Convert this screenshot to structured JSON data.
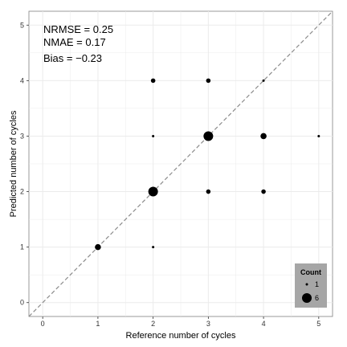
{
  "chart_data": {
    "type": "scatter",
    "xlabel": "Reference number of cycles",
    "ylabel": "Predicted number of cycles",
    "xlim": [
      -0.25,
      5.25
    ],
    "ylim": [
      -0.25,
      5.25
    ],
    "xticks": [
      0,
      1,
      2,
      3,
      4,
      5
    ],
    "yticks": [
      0,
      1,
      2,
      3,
      4,
      5
    ],
    "grid": true,
    "reference_line": "y = x (dashed)",
    "annotations": [
      "NRMSE = 0.25",
      "NMAE = 0.17",
      "Bias = −0.23"
    ],
    "points": [
      {
        "x": 1,
        "y": 1,
        "count": 3
      },
      {
        "x": 2,
        "y": 1,
        "count": 1
      },
      {
        "x": 2,
        "y": 2,
        "count": 6
      },
      {
        "x": 2,
        "y": 3,
        "count": 1
      },
      {
        "x": 2,
        "y": 4,
        "count": 2
      },
      {
        "x": 3,
        "y": 2,
        "count": 2
      },
      {
        "x": 3,
        "y": 3,
        "count": 6
      },
      {
        "x": 3,
        "y": 4,
        "count": 2
      },
      {
        "x": 4,
        "y": 2,
        "count": 2
      },
      {
        "x": 4,
        "y": 3,
        "count": 3
      },
      {
        "x": 4,
        "y": 4,
        "count": 1
      },
      {
        "x": 5,
        "y": 3,
        "count": 1
      }
    ],
    "legend": {
      "title": "Count",
      "entries": [
        {
          "label": "1",
          "count": 1
        },
        {
          "label": "6",
          "count": 6
        }
      ],
      "position": "bottom-right"
    },
    "colors": {
      "point": "#000000",
      "grid": "#ebebeb",
      "legend_bg": "#a6a6a6",
      "reference_line": "#8c8c8c"
    }
  }
}
